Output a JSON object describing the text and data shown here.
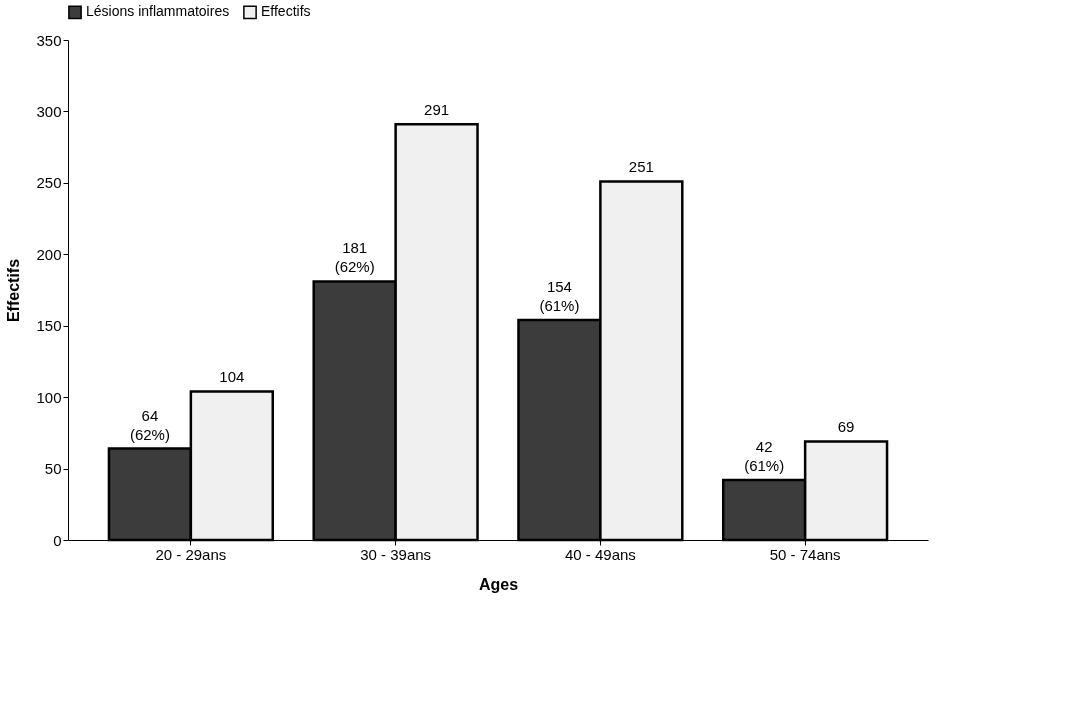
{
  "chart_data": {
    "type": "bar",
    "xlabel": "Ages",
    "ylabel": "Effectifs",
    "categories": [
      "20 - 29ans",
      "30 - 39ans",
      "40 - 49ans",
      "50 - 74ans"
    ],
    "series": [
      {
        "name": "Lésions inflammatoires",
        "color": "#3c3c3c",
        "values": [
          64,
          181,
          154,
          42
        ],
        "value_labels": [
          "64 (62%)",
          "181 (62%)",
          "154 (61%)",
          "42 (61%)"
        ]
      },
      {
        "name": "Effectifs",
        "color": "#f0f0f0",
        "values": [
          104,
          291,
          251,
          69
        ],
        "value_labels": [
          "104",
          "291",
          "251",
          "69"
        ]
      }
    ],
    "ylim": [
      0,
      350
    ],
    "yticks": [
      0,
      50,
      100,
      150,
      200,
      250,
      300,
      350
    ],
    "grid": false,
    "legend": "top"
  }
}
